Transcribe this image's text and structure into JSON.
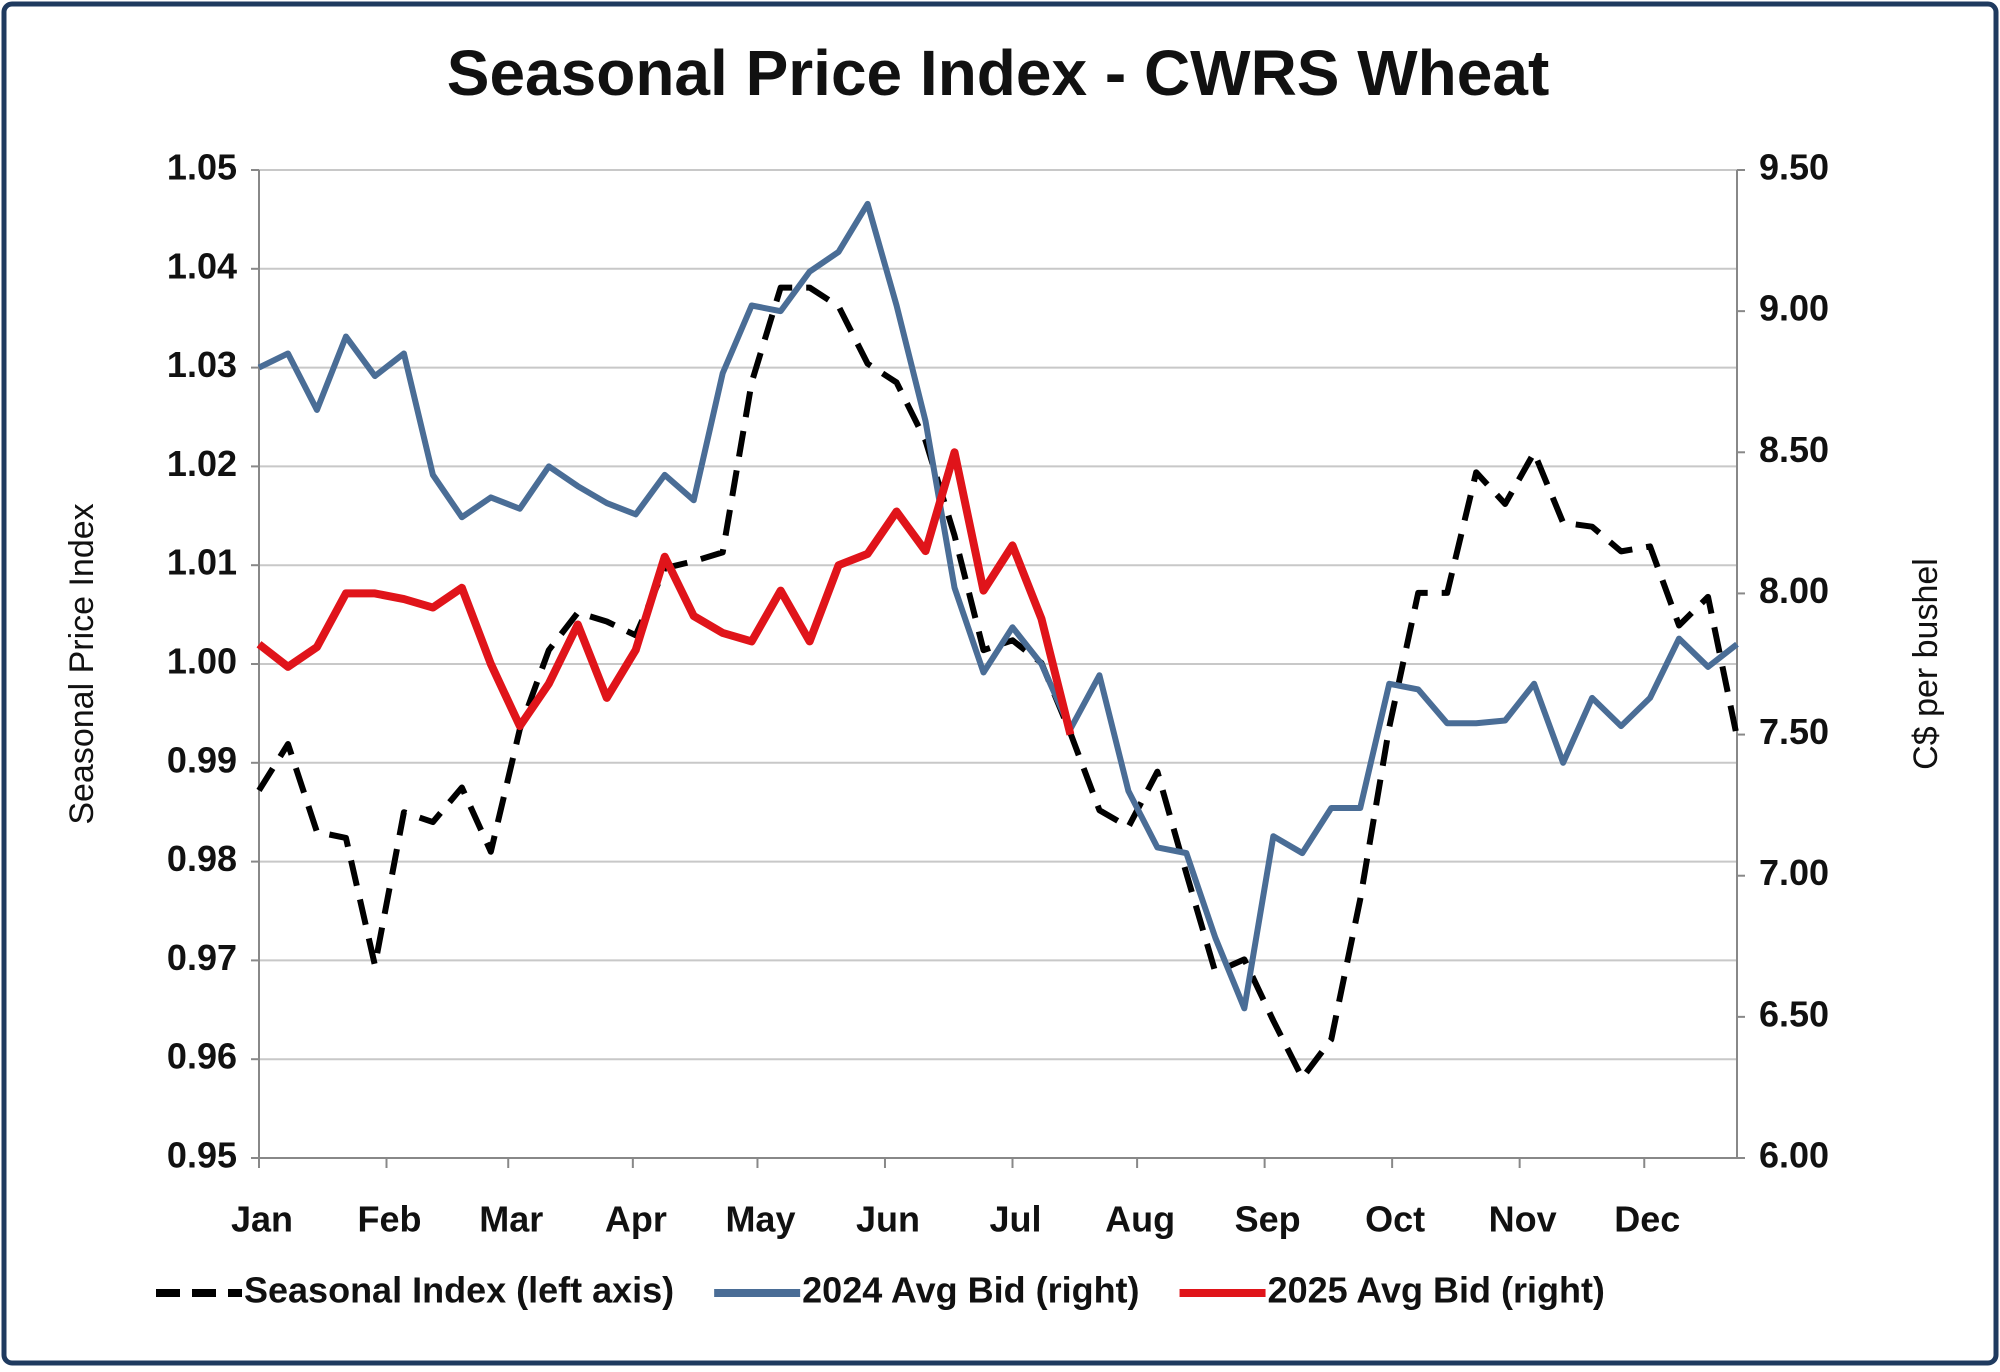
{
  "chart_data": {
    "type": "line",
    "title": "Seasonal Price Index - CWRS Wheat",
    "ylabel": "Seasonal Price Index",
    "y2label": "C$ per bushel",
    "x": [
      0,
      1,
      2,
      3,
      4,
      5,
      6,
      7,
      8,
      9,
      10,
      11,
      12,
      13,
      14,
      15,
      16,
      17,
      18,
      19,
      20,
      21,
      22,
      23,
      24,
      25,
      26,
      27,
      28,
      29,
      30,
      31,
      32,
      33,
      34,
      35,
      36,
      37,
      38,
      39,
      40,
      41,
      42,
      43,
      44,
      45,
      46,
      47,
      48,
      49,
      50,
      51
    ],
    "xlim": [
      0,
      51
    ],
    "xticks": [
      {
        "value": 0,
        "label": "Jan"
      },
      {
        "value": 4.4,
        "label": "Feb"
      },
      {
        "value": 8.6,
        "label": "Mar"
      },
      {
        "value": 12.9,
        "label": "Apr"
      },
      {
        "value": 17.2,
        "label": "May"
      },
      {
        "value": 21.6,
        "label": "Jun"
      },
      {
        "value": 26,
        "label": "Jul"
      },
      {
        "value": 30.3,
        "label": "Aug"
      },
      {
        "value": 34.7,
        "label": "Sep"
      },
      {
        "value": 39.1,
        "label": "Oct"
      },
      {
        "value": 43.5,
        "label": "Nov"
      },
      {
        "value": 47.8,
        "label": "Dec"
      }
    ],
    "ylim": [
      0.95,
      1.05
    ],
    "yticks": [
      0.95,
      0.96,
      0.97,
      0.98,
      0.99,
      {
        "value": 1,
        "label": "1.00"
      },
      1.01,
      1.02,
      1.03,
      1.04,
      1.05
    ],
    "y2lim": [
      6,
      9.5
    ],
    "y2ticks": [
      {
        "value": 6,
        "label": "6.00"
      },
      {
        "value": 6.5,
        "label": "6.50"
      },
      {
        "value": 7,
        "label": "7.00"
      },
      {
        "value": 7.5,
        "label": "7.50"
      },
      {
        "value": 8,
        "label": "8.00"
      },
      {
        "value": 8.5,
        "label": "8.50"
      },
      {
        "value": 9,
        "label": "9.00"
      },
      {
        "value": 9.5,
        "label": "9.50"
      }
    ],
    "grid": true,
    "legend": "bottom",
    "series": [
      {
        "name": "Seasonal Index (left axis)",
        "color": "#000000",
        "line_style": "dashed",
        "axis": "y",
        "values": [
          0.9872,
          0.9919,
          0.983,
          0.9824,
          0.9695,
          0.985,
          0.984,
          0.9875,
          0.981,
          0.9934,
          1.0014,
          1.0052,
          1.0043,
          1.0029,
          1.0097,
          1.0104,
          1.0113,
          1.0285,
          1.0381,
          1.0381,
          1.0362,
          1.0304,
          1.0285,
          1.0226,
          1.013,
          1.0014,
          1.0024,
          1.0001,
          0.993,
          0.9852,
          0.9835,
          0.9891,
          0.9788,
          0.9688,
          0.9701,
          0.9639,
          0.9581,
          0.962,
          0.9762,
          0.9936,
          1.0072,
          1.0072,
          1.0194,
          1.0162,
          1.0214,
          1.0143,
          1.0139,
          1.0114,
          1.0119,
          1.0039,
          1.0068,
          0.9926
        ]
      },
      {
        "name": "2024 Avg Bid (right)",
        "color": "#4a6d96",
        "line_style": "solid",
        "axis": "y2",
        "values": [
          8.8,
          8.85,
          8.65,
          8.91,
          8.77,
          8.85,
          8.42,
          8.27,
          8.34,
          8.3,
          8.45,
          8.38,
          8.32,
          8.28,
          8.42,
          8.33,
          8.78,
          9.02,
          9.0,
          9.14,
          9.21,
          9.38,
          9.02,
          8.61,
          8.02,
          7.72,
          7.88,
          7.75,
          7.52,
          7.71,
          7.3,
          7.1,
          7.08,
          6.78,
          6.53,
          7.14,
          7.08,
          7.24,
          7.24,
          7.68,
          7.66,
          7.54,
          7.54,
          7.55,
          7.68,
          7.4,
          7.63,
          7.53,
          7.63,
          7.84,
          7.74,
          7.82
        ]
      },
      {
        "name": "2025 Avg Bid (right)",
        "color": "#e0141a",
        "line_style": "solid",
        "axis": "y2",
        "values": [
          7.82,
          7.74,
          7.81,
          8.0,
          8.0,
          7.98,
          7.95,
          8.02,
          7.75,
          7.53,
          7.68,
          7.89,
          7.63,
          7.8,
          8.13,
          7.92,
          7.86,
          7.83,
          8.01,
          7.83,
          8.1,
          8.14,
          8.29,
          8.15,
          8.5,
          8.01,
          8.17,
          7.91,
          7.5,
          null,
          null,
          null,
          null,
          null,
          null,
          null,
          null,
          null,
          null,
          null,
          null,
          null,
          null,
          null,
          null,
          null,
          null,
          null,
          null,
          null,
          null,
          null
        ]
      }
    ]
  }
}
